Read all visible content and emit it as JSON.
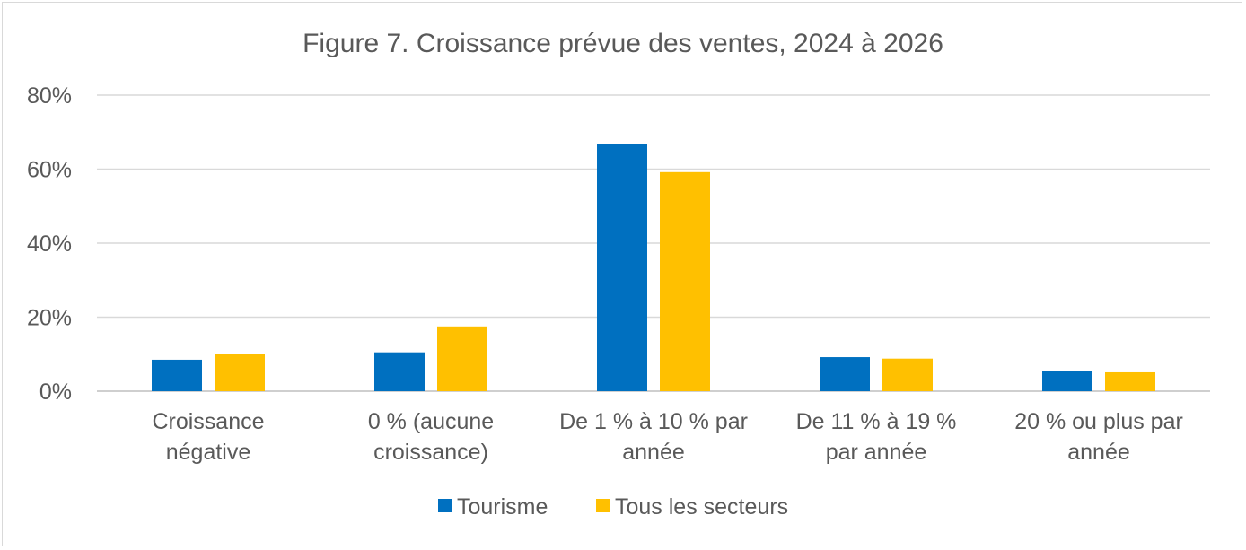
{
  "chart_data": {
    "type": "bar",
    "title": "Figure 7. Croissance prévue des ventes, 2024 à 2026",
    "categories": [
      [
        "Croissance",
        "négative"
      ],
      [
        "0 % (aucune",
        "croissance)"
      ],
      [
        "De 1 % à 10 % par",
        "année"
      ],
      [
        "De 11 % à 19 %",
        "par année"
      ],
      [
        "20 % ou plus par",
        "année"
      ]
    ],
    "series": [
      {
        "name": "Tourisme",
        "color": "#0070c0",
        "values": [
          8.5,
          10.5,
          66.8,
          9.2,
          5.4
        ]
      },
      {
        "name": "Tous les secteurs",
        "color": "#ffc000",
        "values": [
          10.0,
          17.5,
          59.2,
          8.8,
          5.1
        ]
      }
    ],
    "yticks": [
      "0%",
      "20%",
      "40%",
      "60%",
      "80%"
    ],
    "ylim": [
      0,
      80
    ],
    "grid": true,
    "legend_position": "bottom"
  }
}
